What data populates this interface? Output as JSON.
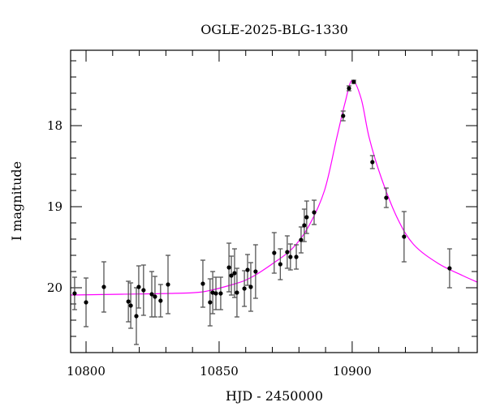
{
  "chart_data": {
    "type": "scatter",
    "title": "OGLE-2025-BLG-1330",
    "xlabel": "HJD - 2450000",
    "ylabel": "I magnitude",
    "xlim": [
      10794.2,
      10947.0
    ],
    "ylim": [
      20.8,
      17.07
    ],
    "y_inverted": true,
    "grid": false,
    "x_ticks": [
      10800,
      10850,
      10900
    ],
    "y_ticks": [
      18,
      19,
      20
    ],
    "x_tick_labels": [
      "10800",
      "10850",
      "10900"
    ],
    "y_tick_labels": [
      "18",
      "19",
      "20"
    ],
    "colors": {
      "points": "#000000",
      "errorbars": "#555555",
      "model": "#ff00ff"
    },
    "points": [
      {
        "x": 10795.7,
        "y": 20.07,
        "err": 0.2
      },
      {
        "x": 10800.0,
        "y": 20.18,
        "err": 0.3
      },
      {
        "x": 10806.7,
        "y": 19.99,
        "err": 0.31
      },
      {
        "x": 10815.9,
        "y": 20.17,
        "err": 0.25
      },
      {
        "x": 10816.8,
        "y": 20.22,
        "err": 0.28
      },
      {
        "x": 10818.9,
        "y": 20.35,
        "err": 0.35
      },
      {
        "x": 10819.8,
        "y": 19.99,
        "err": 0.26
      },
      {
        "x": 10821.6,
        "y": 20.03,
        "err": 0.31
      },
      {
        "x": 10824.7,
        "y": 20.08,
        "err": 0.28
      },
      {
        "x": 10825.9,
        "y": 20.11,
        "err": 0.25
      },
      {
        "x": 10828.0,
        "y": 20.16,
        "err": 0.2
      },
      {
        "x": 10830.8,
        "y": 19.96,
        "err": 0.36
      },
      {
        "x": 10843.9,
        "y": 19.95,
        "err": 0.29
      },
      {
        "x": 10846.6,
        "y": 20.18,
        "err": 0.29
      },
      {
        "x": 10847.6,
        "y": 20.06,
        "err": 0.26
      },
      {
        "x": 10848.8,
        "y": 20.07,
        "err": 0.2
      },
      {
        "x": 10850.6,
        "y": 20.07,
        "err": 0.2
      },
      {
        "x": 10853.7,
        "y": 19.75,
        "err": 0.3
      },
      {
        "x": 10854.6,
        "y": 19.85,
        "err": 0.24
      },
      {
        "x": 10855.8,
        "y": 19.82,
        "err": 0.3
      },
      {
        "x": 10856.7,
        "y": 20.06,
        "err": 0.3
      },
      {
        "x": 10859.5,
        "y": 20.01,
        "err": 0.22
      },
      {
        "x": 10860.7,
        "y": 19.78,
        "err": 0.19
      },
      {
        "x": 10861.9,
        "y": 19.99,
        "err": 0.3
      },
      {
        "x": 10863.7,
        "y": 19.8,
        "err": 0.33
      },
      {
        "x": 10870.7,
        "y": 19.57,
        "err": 0.25
      },
      {
        "x": 10873.0,
        "y": 19.71,
        "err": 0.19
      },
      {
        "x": 10875.6,
        "y": 19.56,
        "err": 0.2
      },
      {
        "x": 10876.8,
        "y": 19.62,
        "err": 0.16
      },
      {
        "x": 10879.0,
        "y": 19.62,
        "err": 0.15
      },
      {
        "x": 10880.8,
        "y": 19.41,
        "err": 0.16
      },
      {
        "x": 10882.0,
        "y": 19.23,
        "err": 0.2
      },
      {
        "x": 10882.9,
        "y": 19.13,
        "err": 0.2
      },
      {
        "x": 10885.7,
        "y": 19.07,
        "err": 0.15
      },
      {
        "x": 10896.6,
        "y": 17.88,
        "err": 0.06
      },
      {
        "x": 10898.8,
        "y": 17.54,
        "err": 0.03
      },
      {
        "x": 10900.6,
        "y": 17.46,
        "err": 0.02
      },
      {
        "x": 10907.6,
        "y": 18.45,
        "err": 0.08
      },
      {
        "x": 10912.8,
        "y": 18.89,
        "err": 0.12
      },
      {
        "x": 10919.5,
        "y": 19.37,
        "err": 0.31
      },
      {
        "x": 10936.6,
        "y": 19.76,
        "err": 0.24
      }
    ],
    "model_curve": [
      [
        10794.2,
        20.09
      ],
      [
        10813.4,
        20.08
      ],
      [
        10831.7,
        20.07
      ],
      [
        10843.9,
        20.05
      ],
      [
        10856.1,
        19.95
      ],
      [
        10862.2,
        19.87
      ],
      [
        10869.8,
        19.71
      ],
      [
        10877.4,
        19.52
      ],
      [
        10883.5,
        19.25
      ],
      [
        10889.6,
        18.8
      ],
      [
        10894.2,
        18.15
      ],
      [
        10897.3,
        17.72
      ],
      [
        10900.0,
        17.44
      ],
      [
        10903.4,
        17.67
      ],
      [
        10906.4,
        18.15
      ],
      [
        10911.0,
        18.65
      ],
      [
        10917.1,
        19.15
      ],
      [
        10923.2,
        19.47
      ],
      [
        10932.3,
        19.7
      ],
      [
        10941.5,
        19.85
      ],
      [
        10947.0,
        19.93
      ]
    ]
  }
}
